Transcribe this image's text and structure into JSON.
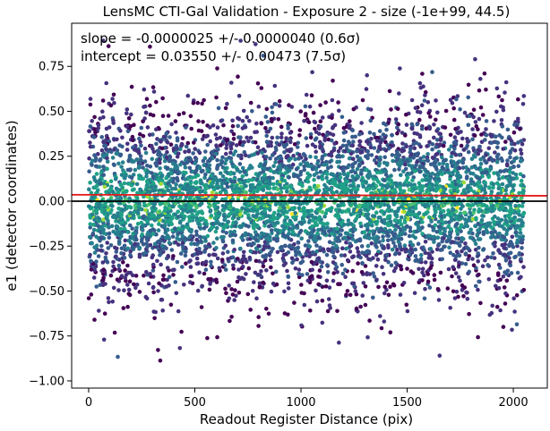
{
  "chart_data": {
    "type": "scatter",
    "title": "LensMC CTI-Gal Validation - Exposure 2 - size (-1e+99, 44.5)",
    "xlabel": "Readout Register Distance (pix)",
    "ylabel": "e1 (detector coordinates)",
    "xlim": [
      -80,
      2160
    ],
    "ylim": [
      -1.04,
      0.99
    ],
    "xticks": [
      0,
      500,
      1000,
      1500,
      2000
    ],
    "yticks": [
      -1.0,
      -0.75,
      -0.5,
      -0.25,
      0.0,
      0.25,
      0.5,
      0.75
    ],
    "xtick_labels": [
      "0",
      "500",
      "1000",
      "1500",
      "2000"
    ],
    "ytick_labels": [
      "−1.00",
      "−0.75",
      "−0.50",
      "−0.25",
      "0.00",
      "0.25",
      "0.50",
      "0.75"
    ],
    "annotations": {
      "slope": "slope = -0.0000025 +/- 0.0000040 (0.6σ)",
      "intercept": "intercept = 0.03550 +/- 0.00473 (7.5σ)"
    },
    "fit_line": {
      "slope": -2.5e-06,
      "intercept": 0.0355,
      "color": "#e41a1c"
    },
    "zero_line": {
      "y": 0.0,
      "color": "#000000"
    },
    "points": {
      "x_range": [
        0,
        2050
      ],
      "y_center": 0.0,
      "y_spread": 0.25,
      "y_min": -0.95,
      "y_max": 0.9,
      "density_colormap": "viridis"
    },
    "grid": false,
    "legend": "none"
  }
}
